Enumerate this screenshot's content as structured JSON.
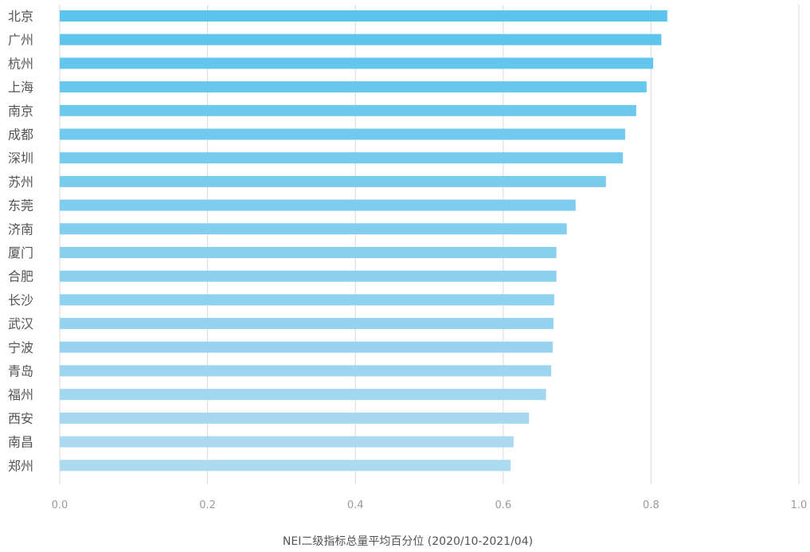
{
  "chart_data": {
    "type": "bar",
    "orientation": "horizontal",
    "categories": [
      "北京",
      "广州",
      "杭州",
      "上海",
      "南京",
      "成都",
      "深圳",
      "苏州",
      "东莞",
      "济南",
      "厦门",
      "合肥",
      "长沙",
      "武汉",
      "宁波",
      "青岛",
      "福州",
      "西安",
      "南昌",
      "郑州"
    ],
    "values": [
      0.822,
      0.814,
      0.803,
      0.794,
      0.78,
      0.765,
      0.762,
      0.739,
      0.698,
      0.686,
      0.672,
      0.672,
      0.669,
      0.668,
      0.667,
      0.665,
      0.658,
      0.635,
      0.614,
      0.61
    ],
    "xlabel": "NEI二级指标总量平均百分位 (2020/10-2021/04)",
    "xlim": [
      0,
      1.0
    ],
    "xticks": [
      "0.0",
      "0.2",
      "0.4",
      "0.6",
      "0.8",
      "1.0"
    ],
    "grid": true,
    "colors": {
      "top": "#5bc4ec",
      "bottom": "#aedaf0",
      "grid": "#d9d9d9"
    }
  }
}
